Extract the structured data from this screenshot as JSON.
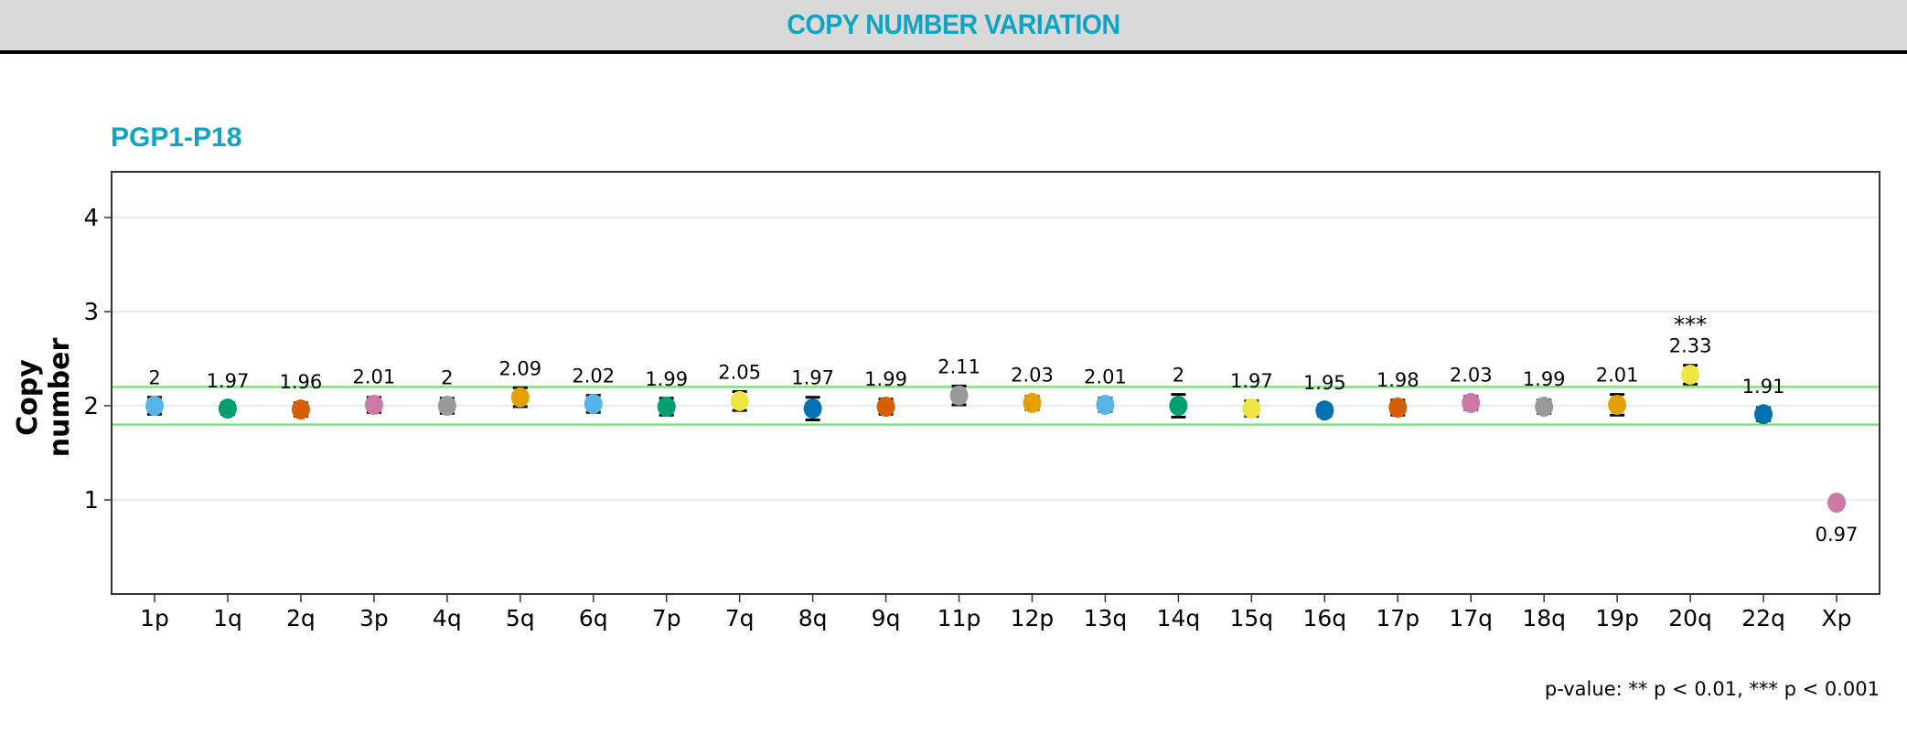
{
  "header": {
    "title": "COPY NUMBER VARIATION"
  },
  "panel": {
    "sample_title": "PGP1-P18",
    "footnote": "p-value:  ** p < 0.01, *** p < 0.001"
  },
  "colors": {
    "accent": "#0fa3c4",
    "threshold_line": "#7be37b",
    "grid": "#e3f0f2"
  },
  "chart_data": {
    "type": "scatter",
    "title": "PGP1-P18",
    "xlabel": "",
    "ylabel": "Copy number",
    "ylim": [
      0,
      4.48
    ],
    "yticks": [
      1,
      2,
      3,
      4
    ],
    "grid": true,
    "threshold_lines": [
      1.8,
      2.2
    ],
    "categories": [
      "1p",
      "1q",
      "2q",
      "3p",
      "4q",
      "5q",
      "6q",
      "7p",
      "7q",
      "8q",
      "9q",
      "11p",
      "12p",
      "13q",
      "14q",
      "15q",
      "16q",
      "17p",
      "17q",
      "18q",
      "19p",
      "20q",
      "22q",
      "Xp"
    ],
    "values": [
      2,
      1.97,
      1.96,
      2.01,
      2,
      2.09,
      2.02,
      1.99,
      2.05,
      1.97,
      1.99,
      2.11,
      2.03,
      2.01,
      2,
      1.97,
      1.95,
      1.98,
      2.03,
      1.99,
      2.01,
      2.33,
      1.91,
      0.97
    ],
    "errors": [
      0.09,
      0.06,
      0.07,
      0.08,
      0.08,
      0.1,
      0.09,
      0.09,
      0.1,
      0.12,
      0.08,
      0.1,
      0.07,
      0.07,
      0.12,
      0.08,
      0.06,
      0.08,
      0.07,
      0.07,
      0.11,
      0.1,
      0.07,
      0.0
    ],
    "labels": [
      "2",
      "1.97",
      "1.96",
      "2.01",
      "2",
      "2.09",
      "2.02",
      "1.99",
      "2.05",
      "1.97",
      "1.99",
      "2.11",
      "2.03",
      "2.01",
      "2",
      "1.97",
      "1.95",
      "1.98",
      "2.03",
      "1.99",
      "2.01",
      "2.33",
      "1.91",
      "0.97"
    ],
    "significance": [
      "",
      "",
      "",
      "",
      "",
      "",
      "",
      "",
      "",
      "",
      "",
      "",
      "",
      "",
      "",
      "",
      "",
      "",
      "",
      "",
      "",
      "***",
      "",
      ""
    ],
    "point_colors": [
      "#56b4e9",
      "#009e73",
      "#d55e00",
      "#cc79a7",
      "#999999",
      "#e69f00",
      "#56b4e9",
      "#009e73",
      "#f0e442",
      "#0072b2",
      "#d55e00",
      "#999999",
      "#e69f00",
      "#56b4e9",
      "#009e73",
      "#f0e442",
      "#0072b2",
      "#d55e00",
      "#cc79a7",
      "#999999",
      "#e69f00",
      "#f0e442",
      "#0072b2",
      "#cc79a7"
    ],
    "legend": "p-value:  ** p < 0.01, *** p < 0.001"
  }
}
